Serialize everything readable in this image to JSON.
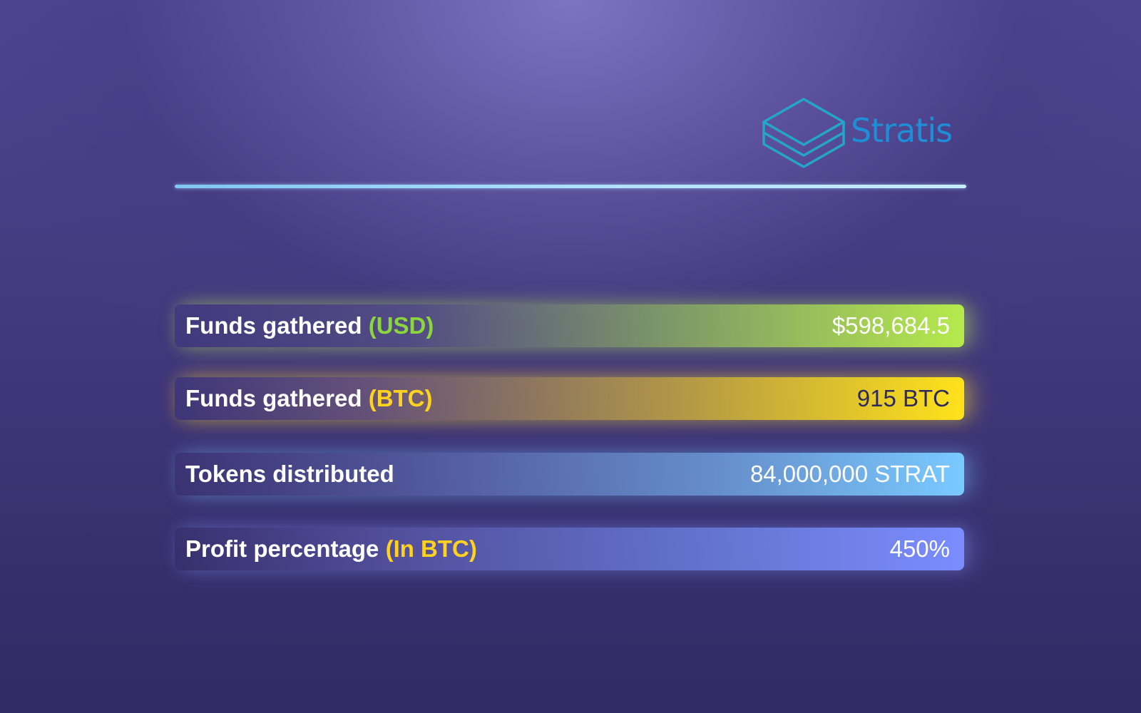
{
  "brand": {
    "logo_text": "Stratis",
    "logo_icon": "stacked-layers-icon",
    "logo_color": "#1e8fd6"
  },
  "colors": {
    "usd_accent": "#8bd63c",
    "btc_accent": "#ffd21f",
    "label_text": "#ffffff",
    "value_light": "#ffffff",
    "value_dark": "#2e2a5a"
  },
  "stats": [
    {
      "label": "Funds gathered",
      "qualifier": "(USD)",
      "qualifier_color": "#8bd63c",
      "value": "$598,684.5",
      "value_color": "#ffffff",
      "bar_end_color": "#b5ea4c"
    },
    {
      "label": "Funds gathered",
      "qualifier": "(BTC)",
      "qualifier_color": "#ffd21f",
      "value": "915 BTC",
      "value_color": "#2e2a5a",
      "bar_end_color": "#ffe21a"
    },
    {
      "label": "Tokens distributed",
      "qualifier": "",
      "qualifier_color": "#ffffff",
      "value": "84,000,000 STRAT",
      "value_color": "#ffffff",
      "bar_end_color": "#79caff"
    },
    {
      "label": "Profit percentage",
      "qualifier": "(In BTC)",
      "qualifier_color": "#ffd21f",
      "value": "450%",
      "value_color": "#ffffff",
      "bar_end_color": "#7a8cff"
    }
  ]
}
